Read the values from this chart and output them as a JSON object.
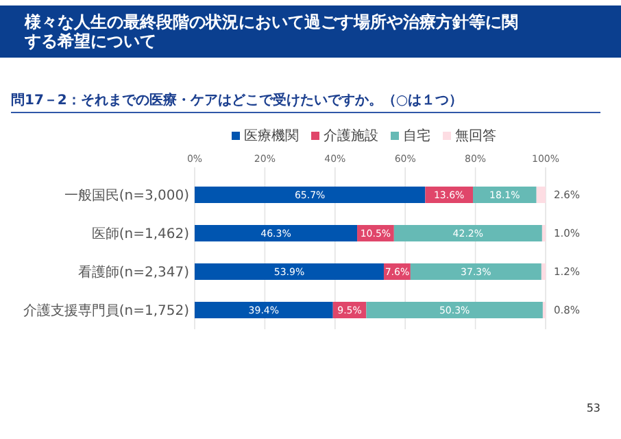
{
  "chart_data": {
    "type": "bar",
    "orientation": "horizontal",
    "stacked": true,
    "title": "様々な人生の最終段階の状況において過ごす場所や治療方針等に関する希望について",
    "subtitle": "問17－2：それまでの医療・ケアはどこで受けたいですか。（○は１つ）",
    "categories": [
      "一般国民(n=3,000)",
      "医師(n=1,462)",
      "看護師(n=2,347)",
      "介護支援専門員(n=1,752)"
    ],
    "series": [
      {
        "name": "医療機関",
        "color": "#0055b0",
        "values": [
          65.7,
          46.3,
          53.9,
          39.4
        ],
        "value_labels": [
          "65.7%",
          "46.3%",
          "53.9%",
          "39.4%"
        ]
      },
      {
        "name": "介護施設",
        "color": "#e0466a",
        "values": [
          13.6,
          10.5,
          7.6,
          9.5
        ],
        "value_labels": [
          "13.6%",
          "10.5%",
          "7.6%",
          "9.5%"
        ]
      },
      {
        "name": "自宅",
        "color": "#66bab5",
        "values": [
          18.1,
          42.2,
          37.3,
          50.3
        ],
        "value_labels": [
          "18.1%",
          "42.2%",
          "37.3%",
          "50.3%"
        ]
      },
      {
        "name": "無回答",
        "color": "#fddde3",
        "values": [
          2.6,
          1.0,
          1.2,
          0.8
        ],
        "value_labels": [
          "2.6%",
          "1.0%",
          "1.2%",
          "0.8%"
        ]
      }
    ],
    "xlim": [
      0,
      100
    ],
    "xticks": [
      {
        "value": 0,
        "label": "0%"
      },
      {
        "value": 20,
        "label": "20%"
      },
      {
        "value": 40,
        "label": "40%"
      },
      {
        "value": 60,
        "label": "60%"
      },
      {
        "value": 80,
        "label": "80%"
      },
      {
        "value": 100,
        "label": "100%"
      }
    ],
    "grid": "x",
    "legend": "top",
    "annotations": [
      "53"
    ]
  }
}
